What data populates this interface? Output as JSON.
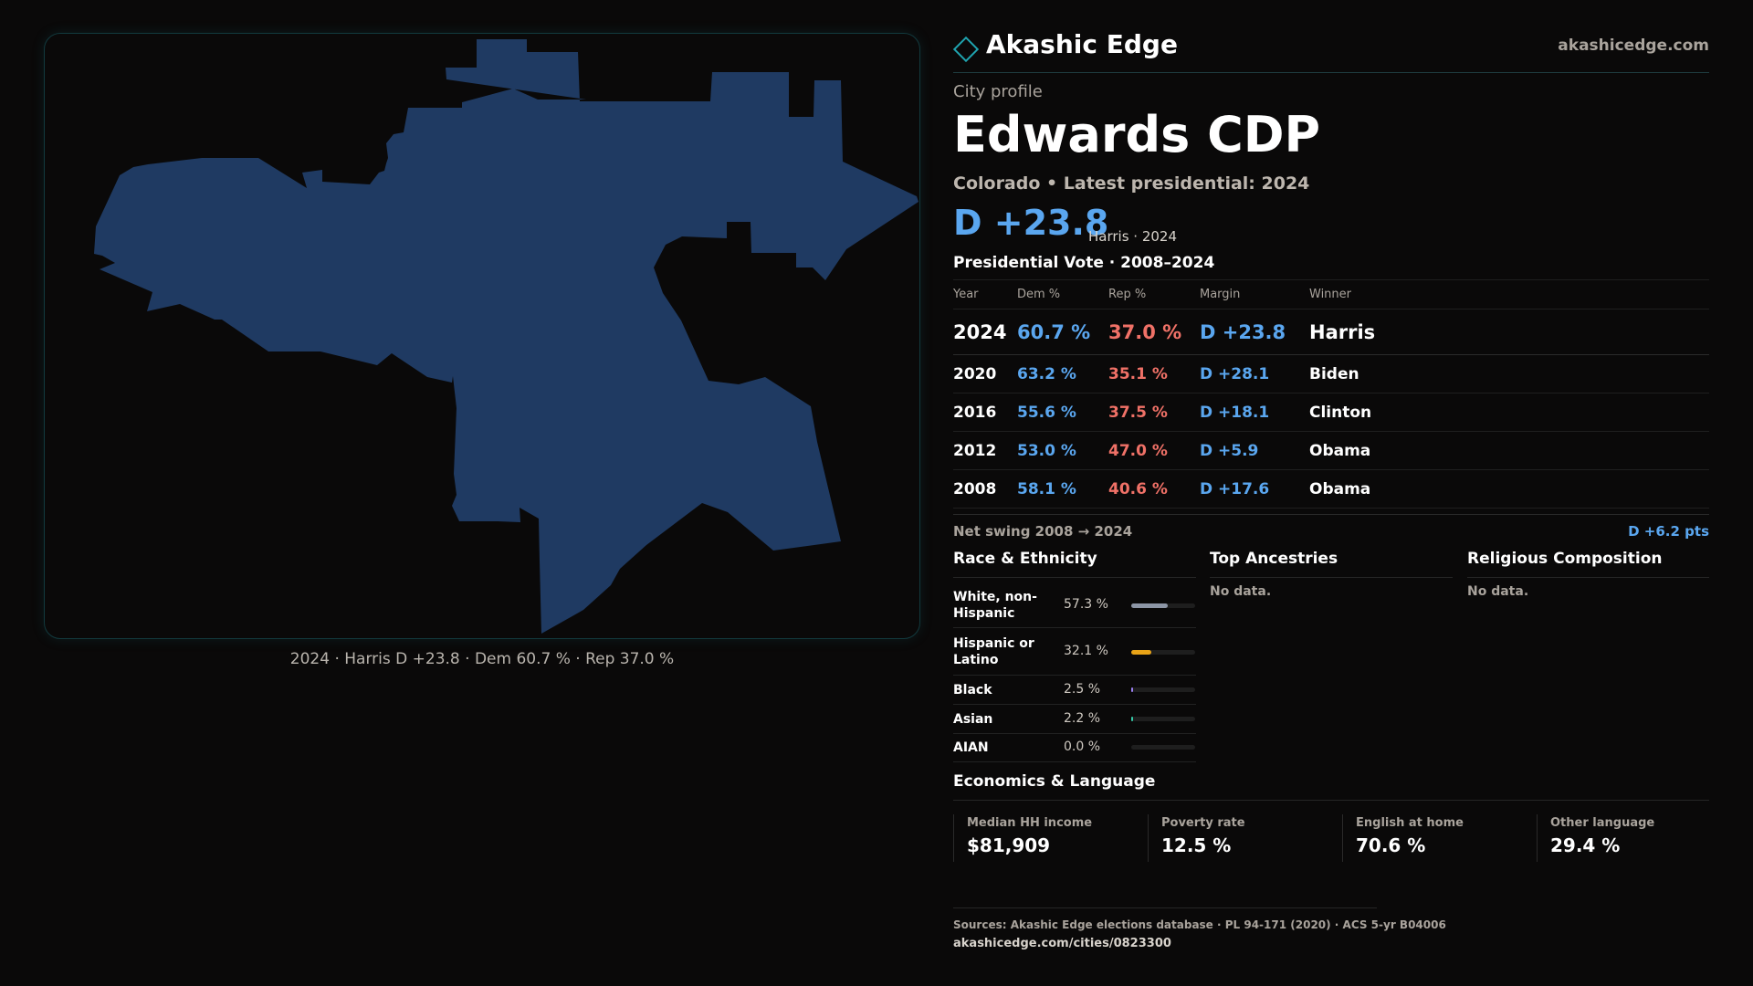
{
  "brand": {
    "name": "Akashic Edge",
    "url": "akashicedge.com",
    "logo_icon": "diamond-outline-icon",
    "accent": "#1fa4b0"
  },
  "map": {
    "caption": "2024 · Harris D +23.8 · Dem 60.7 % · Rep 37.0 %",
    "fill_color": "#1f3a62"
  },
  "profile": {
    "eyebrow": "City profile",
    "title": "Edwards CDP",
    "subtitle": "Colorado • Latest presidential: 2024",
    "margin": "D +23.8",
    "margin_note": "Harris · 2024"
  },
  "vote": {
    "title": "Presidential Vote · 2008–2024",
    "headers": {
      "year": "Year",
      "dem": "Dem %",
      "rep": "Rep %",
      "margin": "Margin",
      "winner": "Winner"
    },
    "rows": [
      {
        "year": "2024",
        "dem": "60.7 %",
        "rep": "37.0 %",
        "margin": "D +23.8",
        "winner": "Harris"
      },
      {
        "year": "2020",
        "dem": "63.2 %",
        "rep": "35.1 %",
        "margin": "D +28.1",
        "winner": "Biden"
      },
      {
        "year": "2016",
        "dem": "55.6 %",
        "rep": "37.5 %",
        "margin": "D +18.1",
        "winner": "Clinton"
      },
      {
        "year": "2012",
        "dem": "53.0 %",
        "rep": "47.0 %",
        "margin": "D +5.9",
        "winner": "Obama"
      },
      {
        "year": "2008",
        "dem": "58.1 %",
        "rep": "40.6 %",
        "margin": "D +17.6",
        "winner": "Obama"
      }
    ],
    "swing_label": "Net swing 2008 → 2024",
    "swing_value": "D +6.2 pts"
  },
  "race": {
    "title": "Race & Ethnicity",
    "rows": [
      {
        "label": "White, non-Hispanic",
        "value": "57.3 %",
        "share": 0.573,
        "color": "#8d96a6"
      },
      {
        "label": "Hispanic or Latino",
        "value": "32.1 %",
        "share": 0.321,
        "color": "#e8a317"
      },
      {
        "label": "Black",
        "value": "2.5 %",
        "share": 0.025,
        "color": "#9a7ff0"
      },
      {
        "label": "Asian",
        "value": "2.2 %",
        "share": 0.022,
        "color": "#35c9a8"
      },
      {
        "label": "AIAN",
        "value": "0.0 %",
        "share": 0.0,
        "color": "#d9822b"
      }
    ]
  },
  "ancestries": {
    "title": "Top Ancestries",
    "empty": "No data."
  },
  "religion": {
    "title": "Religious Composition",
    "empty": "No data."
  },
  "economics": {
    "title": "Economics & Language",
    "stats": [
      {
        "label": "Median HH income",
        "value": "$81,909"
      },
      {
        "label": "Poverty rate",
        "value": "12.5 %"
      },
      {
        "label": "English at home",
        "value": "70.6 %"
      },
      {
        "label": "Other language",
        "value": "29.4 %"
      }
    ]
  },
  "footer": {
    "sources": "Sources: Akashic Edge elections database · PL 94-171 (2020) · ACS 5-yr B04006",
    "url": "akashicedge.com/cities/0823300"
  }
}
